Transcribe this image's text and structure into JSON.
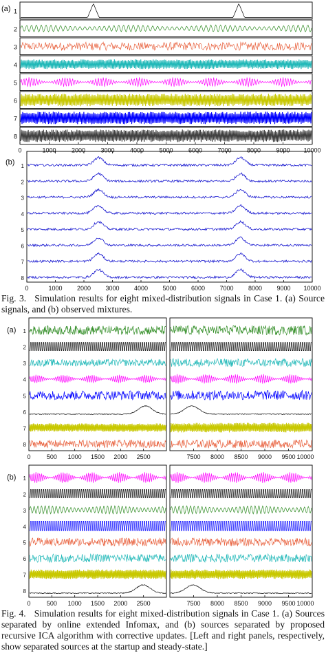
{
  "fig3": {
    "caption_label": "Fig. 3.",
    "caption_text": "Simulation results for eight mixed-distribution signals in Case 1. (a) Source signals, and (b) observed mixtures.",
    "panel_a": {
      "label": "(a)",
      "row_labels": [
        "1",
        "2",
        "3",
        "4",
        "5",
        "6",
        "7",
        "8"
      ],
      "row_colors": [
        "#000000",
        "#2e8b22",
        "#e8603c",
        "#20b8b8",
        "#ff00ff",
        "#c8c800",
        "#0000ff",
        "#404040"
      ],
      "x_ticks": [
        "0",
        "1000",
        "2000",
        "3000",
        "4000",
        "5000",
        "6000",
        "7000",
        "8000",
        "9000",
        "10000"
      ],
      "x_range": [
        0,
        10000
      ],
      "bump_centers": [
        2500,
        7500
      ]
    },
    "panel_b": {
      "label": "(b)",
      "row_labels": [
        "1",
        "2",
        "3",
        "4",
        "5",
        "6",
        "7",
        "8"
      ],
      "line_color": "#1a1ad0",
      "x_ticks": [
        "0",
        "1000",
        "2000",
        "3000",
        "4000",
        "5000",
        "6000",
        "7000",
        "8000",
        "9000",
        "10000"
      ],
      "x_range": [
        0,
        10000
      ],
      "bump_centers": [
        2500,
        7500
      ]
    }
  },
  "fig4": {
    "caption_label": "Fig. 4.",
    "caption_text": "Simulation results for eight mixed-distribution signals in Case 1. (a) Sources separated by online extended Infomax, and (b) sources separated by proposed recursive ICA algorithm with corrective updates. [Left and right panels, respectively, show separated sources at the startup and steady-state.]",
    "panel_a": {
      "label": "(a)",
      "row_labels": [
        "1",
        "2",
        "3",
        "4",
        "5",
        "6",
        "7",
        "8"
      ],
      "row_colors": [
        "#2e8b22",
        "#000000",
        "#20b8b8",
        "#ff00ff",
        "#0000ff",
        "#000000",
        "#c8c800",
        "#e8603c"
      ],
      "left_ticks": [
        "0",
        "500",
        "1000",
        "1500",
        "2000",
        "2500"
      ],
      "left_range": [
        0,
        3000
      ],
      "right_ticks": [
        "7500",
        "8000",
        "8500",
        "9000",
        "9500",
        "10000"
      ],
      "right_range": [
        7000,
        10000
      ]
    },
    "panel_b": {
      "label": "(b)",
      "row_labels": [
        "1",
        "2",
        "3",
        "4",
        "5",
        "6",
        "7",
        "8"
      ],
      "row_colors": [
        "#ff00ff",
        "#000000",
        "#2e8b22",
        "#0000ff",
        "#e8603c",
        "#20b8b8",
        "#c8c800",
        "#000000"
      ],
      "left_ticks": [
        "0",
        "500",
        "1000",
        "1500",
        "2000",
        "2500"
      ],
      "left_range": [
        0,
        3000
      ],
      "right_ticks": [
        "7500",
        "8000",
        "8500",
        "9000",
        "9500",
        "10000"
      ],
      "right_range": [
        7000,
        10000
      ]
    }
  }
}
